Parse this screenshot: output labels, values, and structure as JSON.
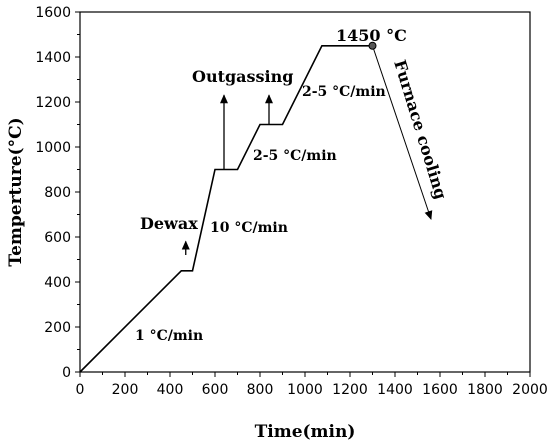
{
  "chart_data": {
    "type": "line",
    "xlabel": "Time(min)",
    "ylabel": "Temperture(°C)",
    "xlim": [
      0,
      2000
    ],
    "ylim": [
      0,
      1600
    ],
    "xticks": [
      0,
      200,
      400,
      600,
      800,
      1000,
      1200,
      1400,
      1600,
      1800,
      2000
    ],
    "yticks": [
      0,
      200,
      400,
      600,
      800,
      1000,
      1200,
      1400,
      1600
    ],
    "grid": false,
    "series": [
      {
        "x": [
          0,
          450,
          500,
          600,
          700,
          800,
          900,
          1075,
          1300
        ],
        "y": [
          0,
          450,
          450,
          900,
          900,
          1100,
          1100,
          1450,
          1450
        ]
      }
    ],
    "annotations": {
      "rate_1": "1 °C/min",
      "rate_10": "10 °C/min",
      "rate_2_5_lower": "2-5 °C/min",
      "rate_2_5_upper": "2-5 °C/min",
      "dewax": "Dewax",
      "outgassing": "Outgassing",
      "peak": "1450 °C",
      "furnace": "Furnace cooling"
    },
    "arrows": [
      {
        "from": [
          470,
          520
        ],
        "to": [
          470,
          580
        ]
      },
      {
        "from": [
          640,
          900
        ],
        "to": [
          640,
          1230
        ]
      },
      {
        "from": [
          840,
          1100
        ],
        "to": [
          840,
          1230
        ]
      },
      {
        "from": [
          1300,
          1450
        ],
        "to": [
          1560,
          680
        ]
      }
    ]
  }
}
